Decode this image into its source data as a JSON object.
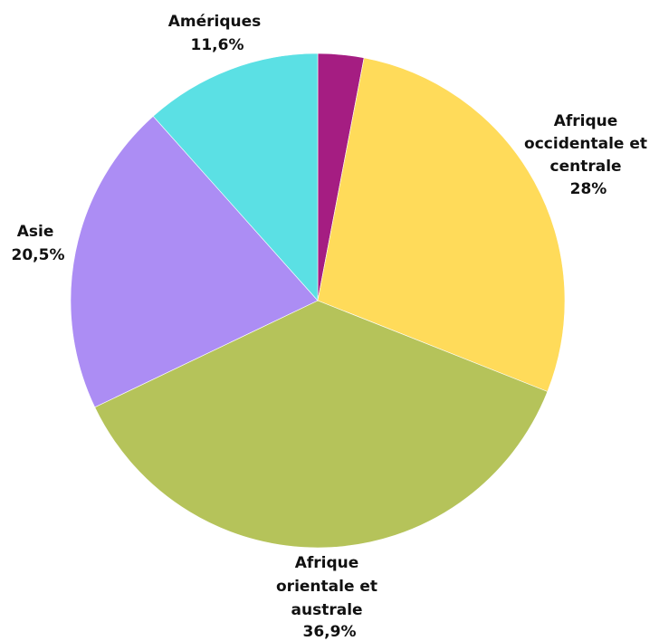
{
  "chart_data": {
    "type": "pie",
    "title": "",
    "slices": [
      {
        "label": "",
        "value": 3.0,
        "value_label": "",
        "color": "#A51D82"
      },
      {
        "label": "Afrique occidentale et centrale",
        "value": 28.0,
        "value_label": "28%",
        "color": "#FFDB5A"
      },
      {
        "label": "Afrique orientale et australe",
        "value": 36.9,
        "value_label": "36,9%",
        "color": "#B5C35A"
      },
      {
        "label": "Asie",
        "value": 20.5,
        "value_label": "20,5%",
        "color": "#AC8DF4"
      },
      {
        "label": "Amériques",
        "value": 11.6,
        "value_label": "11,6%",
        "color": "#5BE0E4"
      }
    ],
    "start_angle": "12 o'clock",
    "direction": "clockwise",
    "legend": "none"
  }
}
